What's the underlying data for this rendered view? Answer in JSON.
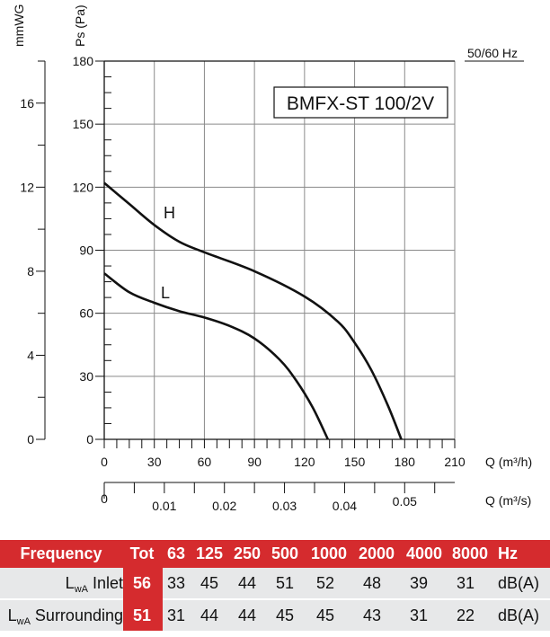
{
  "chart_data": {
    "type": "line",
    "title": "BMFX-ST 100/2V",
    "supply_label": "50/60 Hz",
    "xlabel": "Q (m³/h)",
    "xlabel2": "Q (m³/s)",
    "ylabel": "Ps (Pa)",
    "ylabel2": "mmWG",
    "xlim": [
      0,
      210
    ],
    "ylim": [
      0,
      180
    ],
    "xticks": [
      "0",
      "30",
      "60",
      "90",
      "120",
      "150",
      "180",
      "210"
    ],
    "yticks": [
      "0",
      "30",
      "60",
      "90",
      "120",
      "150",
      "180"
    ],
    "x2ticks": [
      "0",
      "0.01",
      "0.02",
      "0.03",
      "0.04",
      "0.05"
    ],
    "y2ticks": [
      "0",
      "4",
      "8",
      "12",
      "16"
    ],
    "y2lim": [
      0,
      18
    ],
    "grid": true,
    "series": [
      {
        "name": "H",
        "x": [
          0,
          15,
          30,
          45,
          60,
          90,
          120,
          140,
          150,
          160,
          170,
          178
        ],
        "y": [
          122,
          112,
          102,
          94,
          89,
          80,
          68,
          56,
          46,
          33,
          16,
          0
        ]
      },
      {
        "name": "L",
        "x": [
          0,
          15,
          30,
          45,
          60,
          75,
          90,
          105,
          115,
          125,
          134
        ],
        "y": [
          79,
          70,
          65,
          61,
          58,
          54,
          48,
          38,
          28,
          15,
          0
        ]
      }
    ]
  },
  "table": {
    "header": {
      "label": "Frequency",
      "tot": "Tot",
      "bands": [
        "63",
        "125",
        "250",
        "500",
        "1000",
        "2000",
        "4000",
        "8000"
      ],
      "unit": "Hz"
    },
    "rows": [
      {
        "label_main": "L",
        "label_sub": "wA",
        "label_rest": " Inlet",
        "tot": "56",
        "values": [
          "33",
          "45",
          "44",
          "51",
          "52",
          "48",
          "39",
          "31"
        ],
        "unit": "dB(A)"
      },
      {
        "label_main": "L",
        "label_sub": "wA",
        "label_rest": " Surrounding",
        "tot": "51",
        "values": [
          "31",
          "44",
          "44",
          "45",
          "45",
          "43",
          "31",
          "22"
        ],
        "unit": "dB(A)"
      }
    ]
  },
  "colors": {
    "accent": "#d52b2e",
    "row_bg": "#e7e8e9",
    "curve": "#111111",
    "grid": "#8a8a8a"
  }
}
